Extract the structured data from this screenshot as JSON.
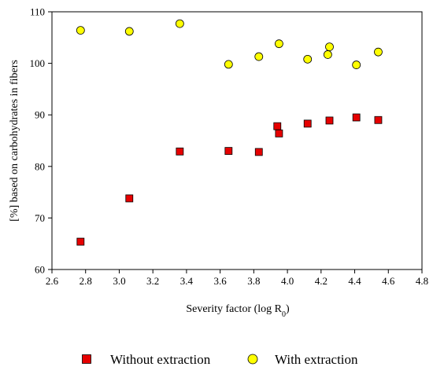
{
  "chart_data": {
    "type": "scatter",
    "title": "",
    "xlabel": "Severity factor (log R",
    "xlabel_subscript": "0",
    "xlabel_suffix": ")",
    "ylabel": "[%] based on carbohydrates in fibers",
    "xlim": [
      2.6,
      4.8
    ],
    "ylim": [
      60,
      110
    ],
    "x_ticks": [
      "2.6",
      "2.8",
      "3.0",
      "3.2",
      "3.4",
      "3.6",
      "3.8",
      "4.0",
      "4.2",
      "4.4",
      "4.6",
      "4.8"
    ],
    "y_ticks": [
      "60",
      "70",
      "80",
      "90",
      "100",
      "110"
    ],
    "grid": false,
    "legend_position": "bottom",
    "series": [
      {
        "name": "Without extraction",
        "marker": "square",
        "color": "#e60000",
        "points": [
          {
            "x": 2.77,
            "y": 65.4
          },
          {
            "x": 3.06,
            "y": 73.8
          },
          {
            "x": 3.36,
            "y": 82.9
          },
          {
            "x": 3.65,
            "y": 83.0
          },
          {
            "x": 3.83,
            "y": 82.8
          },
          {
            "x": 3.94,
            "y": 87.8
          },
          {
            "x": 3.95,
            "y": 86.4
          },
          {
            "x": 4.12,
            "y": 88.3
          },
          {
            "x": 4.25,
            "y": 88.9
          },
          {
            "x": 4.41,
            "y": 89.5
          },
          {
            "x": 4.54,
            "y": 89.0
          }
        ]
      },
      {
        "name": "With extraction",
        "marker": "circle",
        "color": "#ffff00",
        "points": [
          {
            "x": 2.77,
            "y": 106.4
          },
          {
            "x": 3.06,
            "y": 106.2
          },
          {
            "x": 3.36,
            "y": 107.7
          },
          {
            "x": 3.65,
            "y": 99.8
          },
          {
            "x": 3.83,
            "y": 101.3
          },
          {
            "x": 3.95,
            "y": 103.8
          },
          {
            "x": 4.12,
            "y": 100.8
          },
          {
            "x": 4.24,
            "y": 101.7
          },
          {
            "x": 4.25,
            "y": 103.2
          },
          {
            "x": 4.41,
            "y": 99.7
          },
          {
            "x": 4.54,
            "y": 102.2
          }
        ]
      }
    ]
  }
}
